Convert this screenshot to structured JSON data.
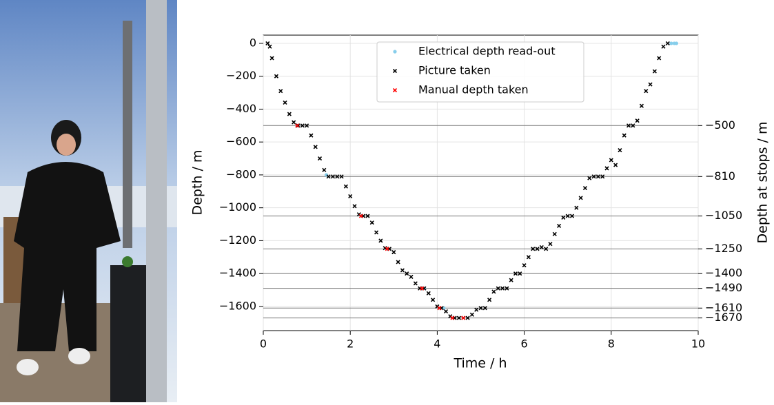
{
  "chart_data": {
    "type": "scatter",
    "xlabel": "Time / h",
    "ylabel": "Depth / m",
    "y2label": "Depth at stops / m",
    "xlim": [
      0,
      10
    ],
    "ylim": [
      -1747,
      50
    ],
    "y2lim": [
      -1747,
      50
    ],
    "xticks": [
      0,
      2,
      4,
      6,
      8,
      10
    ],
    "yticks": [
      {
        "value": -1600,
        "label": "−1600"
      },
      {
        "value": -1400,
        "label": "−1400"
      },
      {
        "value": -1200,
        "label": "−1200"
      },
      {
        "value": -1000,
        "label": "−1000"
      },
      {
        "value": -800,
        "label": "−800"
      },
      {
        "value": -600,
        "label": "−600"
      },
      {
        "value": -400,
        "label": "−400"
      },
      {
        "value": -200,
        "label": "−200"
      },
      0
    ],
    "y2ticks": [
      {
        "value": -500,
        "label": "−500"
      },
      {
        "value": -810,
        "label": "−810"
      },
      {
        "value": -1050,
        "label": "−1050"
      },
      {
        "value": -1250,
        "label": "−1250"
      },
      {
        "value": -1400,
        "label": "−1400"
      },
      {
        "value": -1490,
        "label": "−1490"
      },
      {
        "value": -1610,
        "label": "−1610"
      },
      {
        "value": -1670,
        "label": "−1670"
      }
    ],
    "grid": true,
    "legend": "upper center",
    "series": [
      {
        "name": "Electrical depth read-out",
        "color": "#87ceeb",
        "marker": "o",
        "x": [
          1.45,
          3.7,
          4.15,
          9.38,
          9.45,
          9.5
        ],
        "values": [
          -800,
          -1490,
          -1610,
          0,
          0,
          0
        ]
      },
      {
        "name": "Picture taken",
        "color": "#000000",
        "marker": "x",
        "x": [
          0.1,
          0.15,
          0.2,
          0.3,
          0.4,
          0.5,
          0.6,
          0.7,
          0.8,
          0.9,
          1.0,
          1.1,
          1.2,
          1.3,
          1.4,
          1.5,
          1.6,
          1.7,
          1.8,
          1.9,
          2.0,
          2.1,
          2.2,
          2.3,
          2.4,
          2.5,
          2.6,
          2.7,
          2.8,
          2.9,
          3.0,
          3.1,
          3.2,
          3.3,
          3.4,
          3.5,
          3.6,
          3.7,
          3.8,
          3.9,
          4.0,
          4.1,
          4.2,
          4.3,
          4.4,
          4.5,
          4.6,
          4.7,
          4.8,
          4.9,
          5.0,
          5.1,
          5.2,
          5.3,
          5.4,
          5.5,
          5.6,
          5.7,
          5.8,
          5.9,
          6.0,
          6.1,
          6.2,
          6.3,
          6.4,
          6.5,
          6.6,
          6.7,
          6.8,
          6.9,
          7.0,
          7.1,
          7.2,
          7.3,
          7.4,
          7.5,
          7.6,
          7.7,
          7.8,
          7.9,
          8.0,
          8.1,
          8.2,
          8.3,
          8.4,
          8.5,
          8.6,
          8.7,
          8.8,
          8.9,
          9.0,
          9.1,
          9.2,
          9.3
        ],
        "values": [
          0,
          -20,
          -90,
          -200,
          -290,
          -360,
          -430,
          -480,
          -500,
          -500,
          -500,
          -560,
          -630,
          -700,
          -770,
          -810,
          -810,
          -810,
          -810,
          -870,
          -930,
          -990,
          -1040,
          -1050,
          -1050,
          -1090,
          -1150,
          -1200,
          -1245,
          -1250,
          -1270,
          -1330,
          -1380,
          -1400,
          -1420,
          -1460,
          -1490,
          -1490,
          -1520,
          -1560,
          -1600,
          -1610,
          -1630,
          -1660,
          -1670,
          -1670,
          -1670,
          -1670,
          -1650,
          -1620,
          -1610,
          -1610,
          -1560,
          -1510,
          -1490,
          -1490,
          -1490,
          -1440,
          -1400,
          -1400,
          -1350,
          -1300,
          -1250,
          -1250,
          -1240,
          -1250,
          -1220,
          -1160,
          -1110,
          -1060,
          -1050,
          -1050,
          -1000,
          -940,
          -880,
          -820,
          -810,
          -810,
          -810,
          -760,
          -710,
          -740,
          -650,
          -560,
          -500,
          -500,
          -470,
          -380,
          -290,
          -250,
          -170,
          -90,
          -20,
          0
        ]
      },
      {
        "name": "Manual depth taken",
        "color": "#ff0000",
        "marker": "x",
        "x": [
          0.78,
          2.25,
          2.85,
          3.65,
          4.05,
          4.35,
          4.6
        ],
        "values": [
          -500,
          -1050,
          -1250,
          -1490,
          -1610,
          -1670,
          -1670
        ]
      }
    ]
  }
}
